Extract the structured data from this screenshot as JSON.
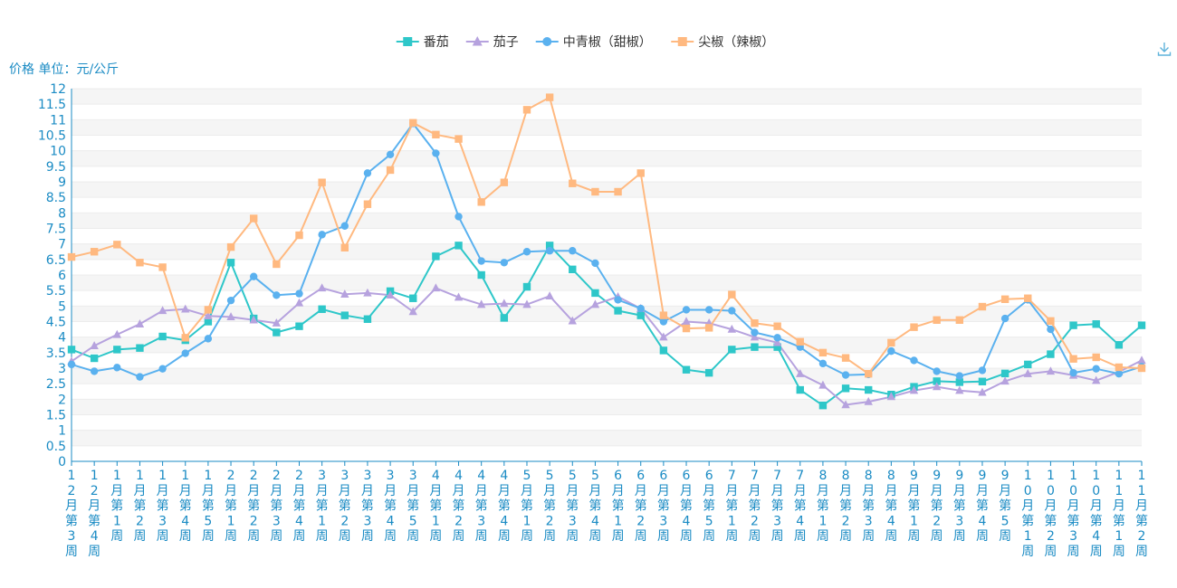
{
  "toolbar": {
    "download_icon": "download-icon"
  },
  "chart_data": {
    "type": "line",
    "ylabel": "价格 单位：元/公斤",
    "ylim": [
      0,
      12
    ],
    "ytick_step": 0.5,
    "grid": true,
    "legend_position": "top-center",
    "categories": [
      "12月第3周",
      "12月第4周",
      "1月第1周",
      "1月第2周",
      "1月第3周",
      "1月第4周",
      "1月第5周",
      "2月第1周",
      "2月第2周",
      "2月第3周",
      "2月第4周",
      "3月第1周",
      "3月第2周",
      "3月第3周",
      "3月第4周",
      "3月第5周",
      "4月第1周",
      "4月第2周",
      "4月第3周",
      "4月第4周",
      "5月第1周",
      "5月第2周",
      "5月第3周",
      "5月第4周",
      "6月第1周",
      "6月第2周",
      "6月第3周",
      "6月第4周",
      "6月第5周",
      "7月第1周",
      "7月第2周",
      "7月第3周",
      "7月第4周",
      "8月第1周",
      "8月第2周",
      "8月第3周",
      "8月第4周",
      "9月第1周",
      "9月第2周",
      "9月第3周",
      "9月第4周",
      "9月第5周",
      "10月第1周",
      "10月第2周",
      "10月第3周",
      "10月第4周",
      "11月第1周",
      "11月第2周"
    ],
    "series": [
      {
        "name": "番茄",
        "color": "#2ec7c9",
        "marker": "square",
        "values": [
          3.6,
          3.32,
          3.6,
          3.65,
          4.02,
          3.9,
          4.5,
          6.4,
          4.6,
          4.15,
          4.35,
          4.9,
          4.7,
          4.58,
          5.48,
          5.25,
          6.6,
          6.95,
          6.0,
          4.62,
          5.62,
          6.95,
          6.18,
          5.42,
          4.85,
          4.7,
          3.57,
          2.95,
          2.85,
          3.6,
          3.68,
          3.68,
          2.3,
          1.8,
          2.35,
          2.3,
          2.15,
          2.4,
          2.58,
          2.55,
          2.57,
          2.83,
          3.12,
          3.45,
          4.38,
          4.42,
          3.75,
          4.38
        ]
      },
      {
        "name": "茄子",
        "color": "#b6a2de",
        "marker": "triangle",
        "values": [
          3.22,
          3.72,
          4.08,
          4.42,
          4.85,
          4.9,
          4.68,
          4.65,
          4.55,
          4.45,
          5.1,
          5.58,
          5.38,
          5.42,
          5.35,
          4.82,
          5.58,
          5.28,
          5.05,
          5.08,
          5.05,
          5.32,
          4.52,
          5.05,
          5.3,
          4.92,
          4.0,
          4.5,
          4.45,
          4.25,
          4.0,
          3.82,
          2.82,
          2.45,
          1.82,
          1.92,
          2.08,
          2.28,
          2.4,
          2.28,
          2.22,
          2.58,
          2.82,
          2.9,
          2.77,
          2.6,
          2.88,
          3.25
        ]
      },
      {
        "name": "中青椒（甜椒）",
        "color": "#5ab1ef",
        "marker": "circle",
        "values": [
          3.12,
          2.9,
          3.02,
          2.72,
          2.98,
          3.48,
          3.95,
          5.18,
          5.95,
          5.35,
          5.4,
          7.3,
          7.58,
          9.28,
          9.88,
          10.88,
          9.92,
          7.88,
          6.45,
          6.4,
          6.75,
          6.78,
          6.78,
          6.38,
          5.2,
          4.92,
          4.5,
          4.88,
          4.88,
          4.85,
          4.15,
          3.98,
          3.68,
          3.15,
          2.78,
          2.8,
          3.55,
          3.25,
          2.9,
          2.75,
          2.93,
          4.6,
          5.2,
          4.25,
          2.85,
          2.98,
          2.82,
          3.05
        ]
      },
      {
        "name": "尖椒（辣椒）",
        "color": "#ffb980",
        "marker": "square",
        "values": [
          6.58,
          6.75,
          6.98,
          6.4,
          6.25,
          3.98,
          4.88,
          6.9,
          7.82,
          6.35,
          7.28,
          8.98,
          6.88,
          8.28,
          9.38,
          10.9,
          10.52,
          10.38,
          8.35,
          8.98,
          11.32,
          11.72,
          8.95,
          8.68,
          8.68,
          9.28,
          4.7,
          4.28,
          4.3,
          5.37,
          4.45,
          4.35,
          3.85,
          3.5,
          3.33,
          2.82,
          3.82,
          4.32,
          4.55,
          4.55,
          4.98,
          5.22,
          5.25,
          4.52,
          3.3,
          3.35,
          3.03,
          3.0
        ]
      }
    ]
  }
}
